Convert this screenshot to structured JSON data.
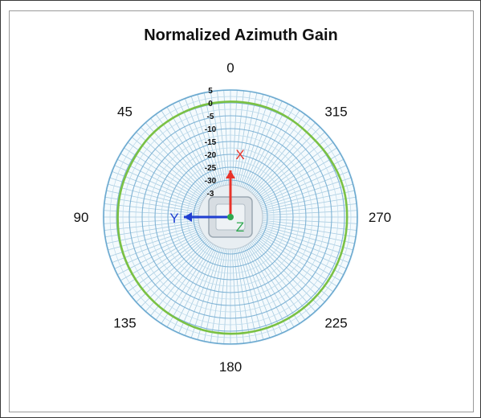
{
  "chart_data": {
    "type": "polar",
    "title": "Normalized Azimuth Gain",
    "angle_labels": [
      {
        "deg": 0,
        "text": "0"
      },
      {
        "deg": 45,
        "text": "45"
      },
      {
        "deg": 90,
        "text": "90"
      },
      {
        "deg": 135,
        "text": "135"
      },
      {
        "deg": 180,
        "text": "180"
      },
      {
        "deg": 225,
        "text": "225"
      },
      {
        "deg": 270,
        "text": "270"
      },
      {
        "deg": 315,
        "text": "315"
      }
    ],
    "angle_direction": "counterclockwise",
    "zero_position": "top",
    "radial_ticks": [
      "5",
      "0",
      "-5",
      "-10",
      "-15",
      "-20",
      "-25",
      "-30",
      "-3"
    ],
    "radial_range": [
      -35,
      5
    ],
    "grid": true,
    "series": [
      {
        "color": "#7ac143",
        "points": [
          {
            "angle": 0,
            "gain": 0.5
          },
          {
            "angle": 15,
            "gain": 0.4
          },
          {
            "angle": 30,
            "gain": 0.2
          },
          {
            "angle": 45,
            "gain": 0
          },
          {
            "angle": 60,
            "gain": -0.5
          },
          {
            "angle": 75,
            "gain": -0.5
          },
          {
            "angle": 90,
            "gain": -0.5
          },
          {
            "angle": 105,
            "gain": -0.3
          },
          {
            "angle": 120,
            "gain": -0.2
          },
          {
            "angle": 135,
            "gain": 0
          },
          {
            "angle": 150,
            "gain": 0.3
          },
          {
            "angle": 165,
            "gain": 0.8
          },
          {
            "angle": 180,
            "gain": 1.0
          },
          {
            "angle": 195,
            "gain": 1.0
          },
          {
            "angle": 210,
            "gain": 1.0
          },
          {
            "angle": 225,
            "gain": 1.0
          },
          {
            "angle": 240,
            "gain": 1.0
          },
          {
            "angle": 255,
            "gain": 1.0
          },
          {
            "angle": 270,
            "gain": 1.0
          },
          {
            "angle": 285,
            "gain": 1.0
          },
          {
            "angle": 300,
            "gain": 0.5
          },
          {
            "angle": 315,
            "gain": 0
          },
          {
            "angle": 330,
            "gain": 0.3
          },
          {
            "angle": 345,
            "gain": 0.5
          }
        ]
      }
    ],
    "orientation_axes": [
      {
        "label": "X",
        "color": "#e8332a",
        "direction": "up"
      },
      {
        "label": "Y",
        "color": "#1f3fd1",
        "direction": "left"
      },
      {
        "label": "Z",
        "color": "#2fa84f",
        "direction": "out"
      }
    ]
  }
}
